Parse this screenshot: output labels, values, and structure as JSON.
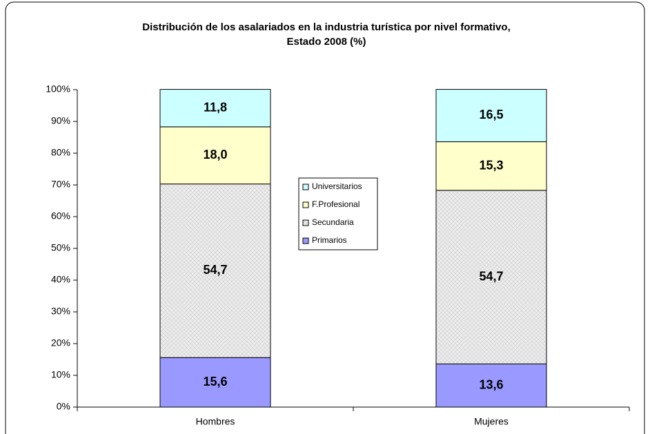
{
  "chart_data": {
    "type": "stacked_bar",
    "title": [
      "Distribución de los asalariados en la industria turística por nivel formativo,",
      "Estado 2008 (%)"
    ],
    "categories": [
      "Hombres",
      "Mujeres"
    ],
    "series": [
      {
        "name": "Primarios",
        "color": "#9999ff",
        "values": [
          15.6,
          13.6
        ],
        "value_labels": [
          "15,6",
          "13,6"
        ]
      },
      {
        "name": "Secundaria",
        "color": "#e6e6e6",
        "values": [
          54.7,
          54.7
        ],
        "value_labels": [
          "54,7",
          "54,7"
        ]
      },
      {
        "name": "F.Profesional",
        "color": "#ffffcc",
        "values": [
          18.0,
          15.3
        ],
        "value_labels": [
          "18,0",
          "15,3"
        ]
      },
      {
        "name": "Universitarios",
        "color": "#ccffff",
        "values": [
          11.8,
          16.5
        ],
        "value_labels": [
          "11,8",
          "16,5"
        ]
      }
    ],
    "ylim": [
      0,
      100
    ],
    "yticks": [
      {
        "value": 0,
        "label": "0%"
      },
      {
        "value": 10,
        "label": "10%"
      },
      {
        "value": 20,
        "label": "20%"
      },
      {
        "value": 30,
        "label": "30%"
      },
      {
        "value": 40,
        "label": "40%"
      },
      {
        "value": 50,
        "label": "50%"
      },
      {
        "value": 60,
        "label": "60%"
      },
      {
        "value": 70,
        "label": "70%"
      },
      {
        "value": 80,
        "label": "80%"
      },
      {
        "value": 90,
        "label": "90%"
      },
      {
        "value": 100,
        "label": "100%"
      }
    ],
    "legend": "center"
  }
}
